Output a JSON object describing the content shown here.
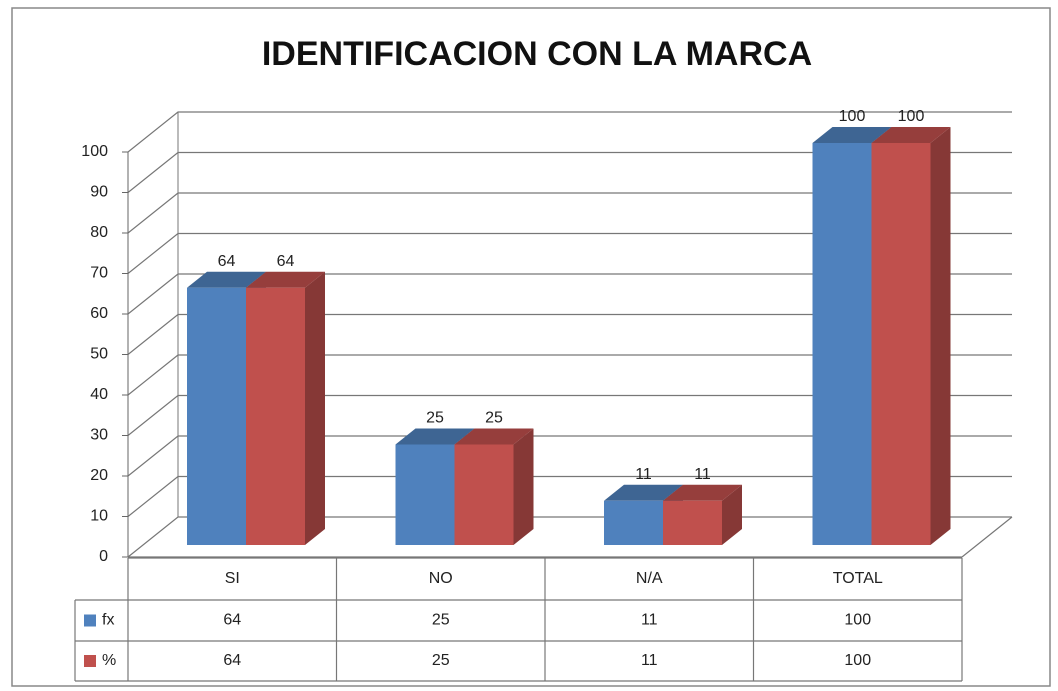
{
  "chart_data": {
    "type": "bar3d",
    "title": "IDENTIFICACION CON LA MARCA",
    "categories": [
      "SI",
      "NO",
      "N/A",
      "TOTAL"
    ],
    "series": [
      {
        "name": "fx",
        "color": "#4f81bd",
        "values": [
          64,
          25,
          11,
          100
        ]
      },
      {
        "name": "%",
        "color": "#c0504d",
        "values": [
          64,
          25,
          11,
          100
        ]
      }
    ],
    "ylim": [
      0,
      100
    ],
    "yticks": [
      0,
      10,
      20,
      30,
      40,
      50,
      60,
      70,
      80,
      90,
      100
    ],
    "grid": true,
    "data_labels": true,
    "data_table": true
  }
}
